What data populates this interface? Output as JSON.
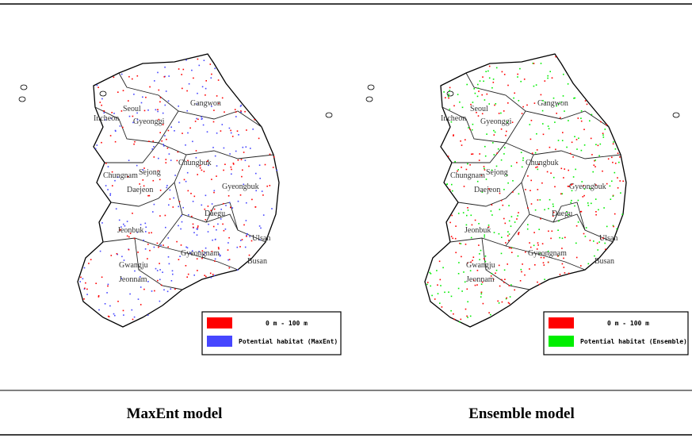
{
  "maps": [
    {
      "labels": [
        "Gangwon",
        "Seoul",
        "Incheon",
        "Gyeonggi",
        "Chungbuk",
        "Sejong",
        "Chungnam",
        "Daejeon",
        "Gyeongbuk",
        "Daegu",
        "Jeonbuk",
        "Ulsan",
        "Gyeongnam",
        "Gwangju",
        "Busan",
        "Jeonnam"
      ],
      "legend": [
        {
          "label": "0 m - 100 m",
          "color": "#ff0000"
        },
        {
          "label": "Potential habitat (MaxEnt)",
          "color": "#4646ff"
        }
      ],
      "caption": "MaxEnt model"
    },
    {
      "labels": [
        "Gangwon",
        "Seoul",
        "Incheon",
        "Gyeonggi",
        "Chungbuk",
        "Sejong",
        "Chungnam",
        "Daejeon",
        "Gyeongbuk",
        "Daegu",
        "Jeonbuk",
        "Ulsan",
        "Gyeongnam",
        "Gwangju",
        "Busan",
        "Jeonnam"
      ],
      "legend": [
        {
          "label": "0 m - 100 m",
          "color": "#ff0000"
        },
        {
          "label": "Potential habitat (Ensemble)",
          "color": "#00ee00"
        }
      ],
      "caption": "Ensemble model"
    }
  ]
}
